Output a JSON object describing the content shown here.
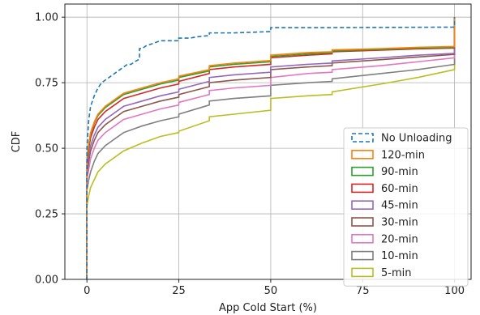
{
  "chart_data": {
    "type": "line",
    "xlabel": "App Cold Start (%)",
    "ylabel": "CDF",
    "xlim": [
      -6,
      104.5
    ],
    "ylim": [
      0.0,
      1.05
    ],
    "x_ticks": [
      0,
      25,
      50,
      75,
      100
    ],
    "y_ticks": [
      0.0,
      0.25,
      0.5,
      0.75,
      1.0
    ],
    "x_tick_labels": [
      "0",
      "25",
      "50",
      "75",
      "100"
    ],
    "y_tick_labels": [
      "0.00",
      "0.25",
      "0.50",
      "0.75",
      "1.00"
    ],
    "grid": true,
    "legend_position": "lower-right",
    "series": [
      {
        "name": "No Unloading",
        "color": "#1f77b4",
        "dash": "dashed",
        "x": [
          0,
          0,
          0.5,
          1,
          2,
          3,
          4,
          5,
          6,
          7,
          8,
          9,
          10,
          11,
          12,
          13,
          14.3,
          14.3,
          15,
          16,
          18,
          20,
          22,
          25,
          25,
          28,
          30,
          33.3,
          33.3,
          40,
          50,
          50,
          66.7,
          66.7,
          100,
          100
        ],
        "y": [
          0.0,
          0.5,
          0.61,
          0.66,
          0.7,
          0.73,
          0.75,
          0.76,
          0.77,
          0.78,
          0.79,
          0.8,
          0.81,
          0.82,
          0.82,
          0.83,
          0.84,
          0.88,
          0.88,
          0.89,
          0.9,
          0.91,
          0.91,
          0.91,
          0.92,
          0.92,
          0.925,
          0.93,
          0.94,
          0.94,
          0.945,
          0.96,
          0.96,
          0.96,
          0.962,
          1.0
        ]
      },
      {
        "name": "120-min",
        "color": "#ff7f0e",
        "dash": "solid",
        "x": [
          0,
          0,
          0.5,
          1,
          2,
          3,
          5,
          8,
          10,
          15,
          20,
          25,
          25,
          33.3,
          33.3,
          40,
          50,
          50,
          60,
          66.7,
          66.7,
          80,
          90,
          100,
          100
        ],
        "y": [
          0.0,
          0.46,
          0.52,
          0.56,
          0.6,
          0.63,
          0.66,
          0.69,
          0.71,
          0.73,
          0.75,
          0.765,
          0.775,
          0.8,
          0.815,
          0.825,
          0.835,
          0.855,
          0.865,
          0.868,
          0.875,
          0.88,
          0.885,
          0.888,
          1.0
        ]
      },
      {
        "name": "90-min",
        "color": "#2ca02c",
        "dash": "solid",
        "x": [
          0,
          0,
          0.5,
          1,
          2,
          3,
          5,
          8,
          10,
          15,
          20,
          25,
          25,
          33.3,
          33.3,
          40,
          50,
          50,
          60,
          66.7,
          66.7,
          80,
          90,
          100,
          100
        ],
        "y": [
          0.0,
          0.45,
          0.51,
          0.555,
          0.595,
          0.625,
          0.655,
          0.685,
          0.705,
          0.725,
          0.745,
          0.76,
          0.77,
          0.795,
          0.81,
          0.82,
          0.83,
          0.85,
          0.86,
          0.864,
          0.871,
          0.877,
          0.882,
          0.885,
          1.0
        ]
      },
      {
        "name": "60-min",
        "color": "#d62728",
        "dash": "solid",
        "x": [
          0,
          0,
          0.5,
          1,
          2,
          3,
          5,
          8,
          10,
          15,
          20,
          25,
          25,
          33.3,
          33.3,
          40,
          50,
          50,
          60,
          66.7,
          66.7,
          80,
          90,
          100,
          100
        ],
        "y": [
          0.0,
          0.44,
          0.5,
          0.54,
          0.58,
          0.61,
          0.64,
          0.67,
          0.69,
          0.71,
          0.73,
          0.745,
          0.755,
          0.785,
          0.8,
          0.81,
          0.82,
          0.845,
          0.855,
          0.86,
          0.868,
          0.874,
          0.879,
          0.882,
          1.0
        ]
      },
      {
        "name": "45-min",
        "color": "#9467bd",
        "dash": "solid",
        "x": [
          0,
          0,
          0.5,
          1,
          2,
          3,
          5,
          8,
          10,
          15,
          20,
          25,
          25,
          33.3,
          33.3,
          40,
          50,
          50,
          60,
          66.7,
          66.7,
          80,
          90,
          100,
          100
        ],
        "y": [
          0.0,
          0.42,
          0.47,
          0.51,
          0.55,
          0.58,
          0.61,
          0.64,
          0.66,
          0.68,
          0.7,
          0.715,
          0.725,
          0.755,
          0.77,
          0.78,
          0.79,
          0.81,
          0.82,
          0.825,
          0.833,
          0.845,
          0.855,
          0.862,
          1.0
        ]
      },
      {
        "name": "30-min",
        "color": "#8c564b",
        "dash": "solid",
        "x": [
          0,
          0,
          0.5,
          1,
          2,
          3,
          5,
          8,
          10,
          15,
          20,
          25,
          25,
          33.3,
          33.3,
          40,
          50,
          50,
          60,
          66.7,
          66.7,
          80,
          90,
          100,
          100
        ],
        "y": [
          0.0,
          0.4,
          0.45,
          0.49,
          0.53,
          0.56,
          0.59,
          0.62,
          0.64,
          0.66,
          0.68,
          0.695,
          0.705,
          0.735,
          0.75,
          0.76,
          0.77,
          0.8,
          0.81,
          0.815,
          0.825,
          0.838,
          0.848,
          0.858,
          1.0
        ]
      },
      {
        "name": "20-min",
        "color": "#e377c2",
        "dash": "solid",
        "x": [
          0,
          0,
          0.5,
          1,
          2,
          3,
          5,
          8,
          10,
          15,
          20,
          25,
          25,
          33.3,
          33.3,
          40,
          50,
          50,
          60,
          66.7,
          66.7,
          80,
          90,
          100,
          100
        ],
        "y": [
          0.0,
          0.38,
          0.42,
          0.46,
          0.5,
          0.53,
          0.56,
          0.59,
          0.61,
          0.63,
          0.65,
          0.665,
          0.675,
          0.705,
          0.72,
          0.73,
          0.74,
          0.77,
          0.785,
          0.79,
          0.8,
          0.815,
          0.83,
          0.845,
          1.0
        ]
      },
      {
        "name": "10-min",
        "color": "#7f7f7f",
        "dash": "solid",
        "x": [
          0,
          0,
          0.5,
          1,
          2,
          3,
          5,
          8,
          10,
          15,
          20,
          25,
          25,
          33.3,
          33.3,
          40,
          50,
          50,
          60,
          66.7,
          66.7,
          80,
          90,
          100,
          100
        ],
        "y": [
          0.0,
          0.34,
          0.38,
          0.41,
          0.45,
          0.48,
          0.51,
          0.54,
          0.56,
          0.585,
          0.605,
          0.62,
          0.63,
          0.665,
          0.68,
          0.69,
          0.7,
          0.74,
          0.75,
          0.755,
          0.765,
          0.785,
          0.8,
          0.82,
          1.0
        ]
      },
      {
        "name": "5-min",
        "color": "#bcbd22",
        "dash": "solid",
        "x": [
          0,
          0,
          0.5,
          1,
          2,
          3,
          5,
          8,
          10,
          15,
          20,
          25,
          25,
          33.3,
          33.3,
          40,
          50,
          50,
          60,
          66.7,
          66.7,
          80,
          90,
          100,
          100
        ],
        "y": [
          0.0,
          0.28,
          0.32,
          0.35,
          0.38,
          0.41,
          0.44,
          0.47,
          0.49,
          0.52,
          0.545,
          0.56,
          0.565,
          0.605,
          0.62,
          0.63,
          0.645,
          0.69,
          0.7,
          0.705,
          0.715,
          0.745,
          0.77,
          0.8,
          1.0
        ]
      }
    ]
  }
}
